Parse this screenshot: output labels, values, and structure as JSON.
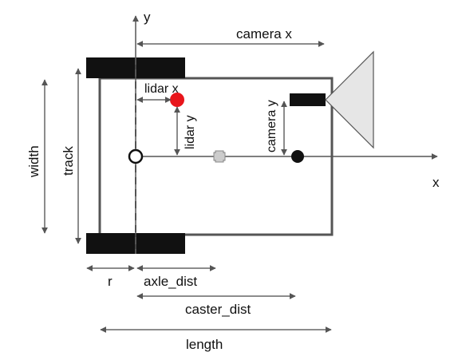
{
  "labels": {
    "y_axis": "y",
    "x_axis": "x",
    "camera_x": "camera x",
    "camera_y": "camera y",
    "lidar_x": "lidar x",
    "lidar_y": "lidar y",
    "width": "width",
    "track": "track",
    "r": "r",
    "axle_dist": "axle_dist",
    "caster_dist": "caster_dist",
    "length": "length"
  },
  "colors": {
    "line": "#555555",
    "dim": "#666666",
    "wheel": "#111111",
    "lidar": "#e8151b",
    "camera_cone": "#e6e6e6",
    "caster": "#cccccc"
  },
  "icons": {
    "lidar": "red-dot-icon",
    "camera": "triangle-icon",
    "caster": "cross-icon",
    "origin": "hollow-circle-icon",
    "camera_mount": "black-dot-icon"
  }
}
